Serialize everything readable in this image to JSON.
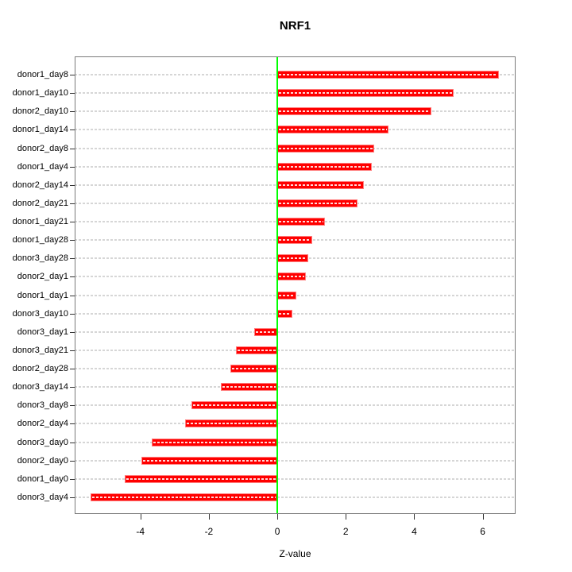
{
  "chart": {
    "title": "NRF1",
    "xlabel": "Z-value"
  },
  "chart_data": {
    "type": "bar",
    "orientation": "horizontal",
    "title": "NRF1",
    "xlabel": "Z-value",
    "ylabel": "",
    "categories": [
      "donor1_day8",
      "donor1_day10",
      "donor2_day10",
      "donor1_day14",
      "donor2_day8",
      "donor1_day4",
      "donor2_day14",
      "donor2_day21",
      "donor1_day21",
      "donor1_day28",
      "donor3_day28",
      "donor2_day1",
      "donor1_day1",
      "donor3_day10",
      "donor3_day1",
      "donor3_day21",
      "donor2_day28",
      "donor3_day14",
      "donor3_day8",
      "donor2_day4",
      "donor3_day0",
      "donor2_day0",
      "donor1_day0",
      "donor3_day4"
    ],
    "values": [
      6.47,
      5.14,
      4.49,
      3.25,
      2.82,
      2.77,
      2.52,
      2.34,
      1.38,
      1.01,
      0.9,
      0.84,
      0.56,
      0.43,
      -0.68,
      -1.22,
      -1.36,
      -1.64,
      -2.52,
      -2.69,
      -3.68,
      -3.96,
      -4.46,
      -5.45
    ],
    "xlim": [
      -5.92,
      6.96
    ],
    "xticks": [
      -4,
      -2,
      0,
      2,
      4,
      6
    ],
    "grid": "dashed horizontal line per category, drawn across full plot width",
    "legend": "none",
    "bar_color": "#ff0000",
    "bar_border_color": "#ff8080",
    "zero_line_color": "#00ff00",
    "gridline_color": "#d6d6d6",
    "box_color": "#7a7a7a",
    "text_color": "#000000"
  }
}
